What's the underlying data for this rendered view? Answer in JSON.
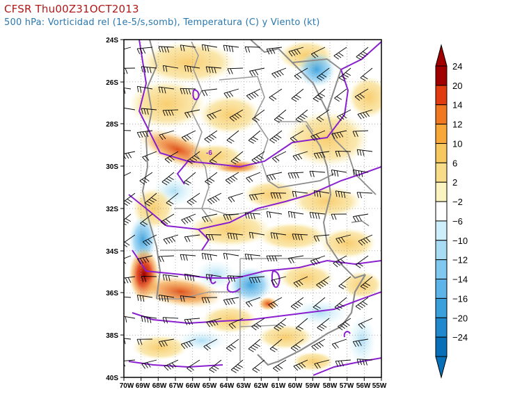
{
  "title": {
    "line1": "CFSR Thu00Z31OCT2013",
    "line2": "500 hPa: Vorticidad rel (1e-5/s,somb), Temperatura (C) y Viento (kt)"
  },
  "map": {
    "lat_labels": [
      "24S",
      "26S",
      "28S",
      "30S",
      "32S",
      "34S",
      "36S",
      "38S",
      "40S"
    ],
    "lon_labels": [
      "70W",
      "69W",
      "68W",
      "67W",
      "66W",
      "65W",
      "64W",
      "63W",
      "62W",
      "61W",
      "60W",
      "59W",
      "58W",
      "57W",
      "56W",
      "55W"
    ],
    "contour_label": "-6",
    "colors": {
      "temperature_contour": "#8a1fd0",
      "coast_border": "#8c8c8c",
      "province_border": "#9a9a9a",
      "wind_barb": "#000000"
    }
  },
  "colorbar": {
    "labels": [
      "24",
      "20",
      "14",
      "12",
      "10",
      "6",
      "2",
      "−2",
      "−6",
      "−10",
      "−12",
      "−14",
      "−16",
      "−20",
      "−24"
    ],
    "colors": [
      "#a00000",
      "#e03c10",
      "#f07820",
      "#f8a838",
      "#f8c860",
      "#f8dc88",
      "#fcf4c0",
      "#ffffff",
      "#cceffa",
      "#a8dcf4",
      "#80c8f0",
      "#5cb4e8",
      "#3aa0dc",
      "#2088cc",
      "#0870b8"
    ]
  }
}
